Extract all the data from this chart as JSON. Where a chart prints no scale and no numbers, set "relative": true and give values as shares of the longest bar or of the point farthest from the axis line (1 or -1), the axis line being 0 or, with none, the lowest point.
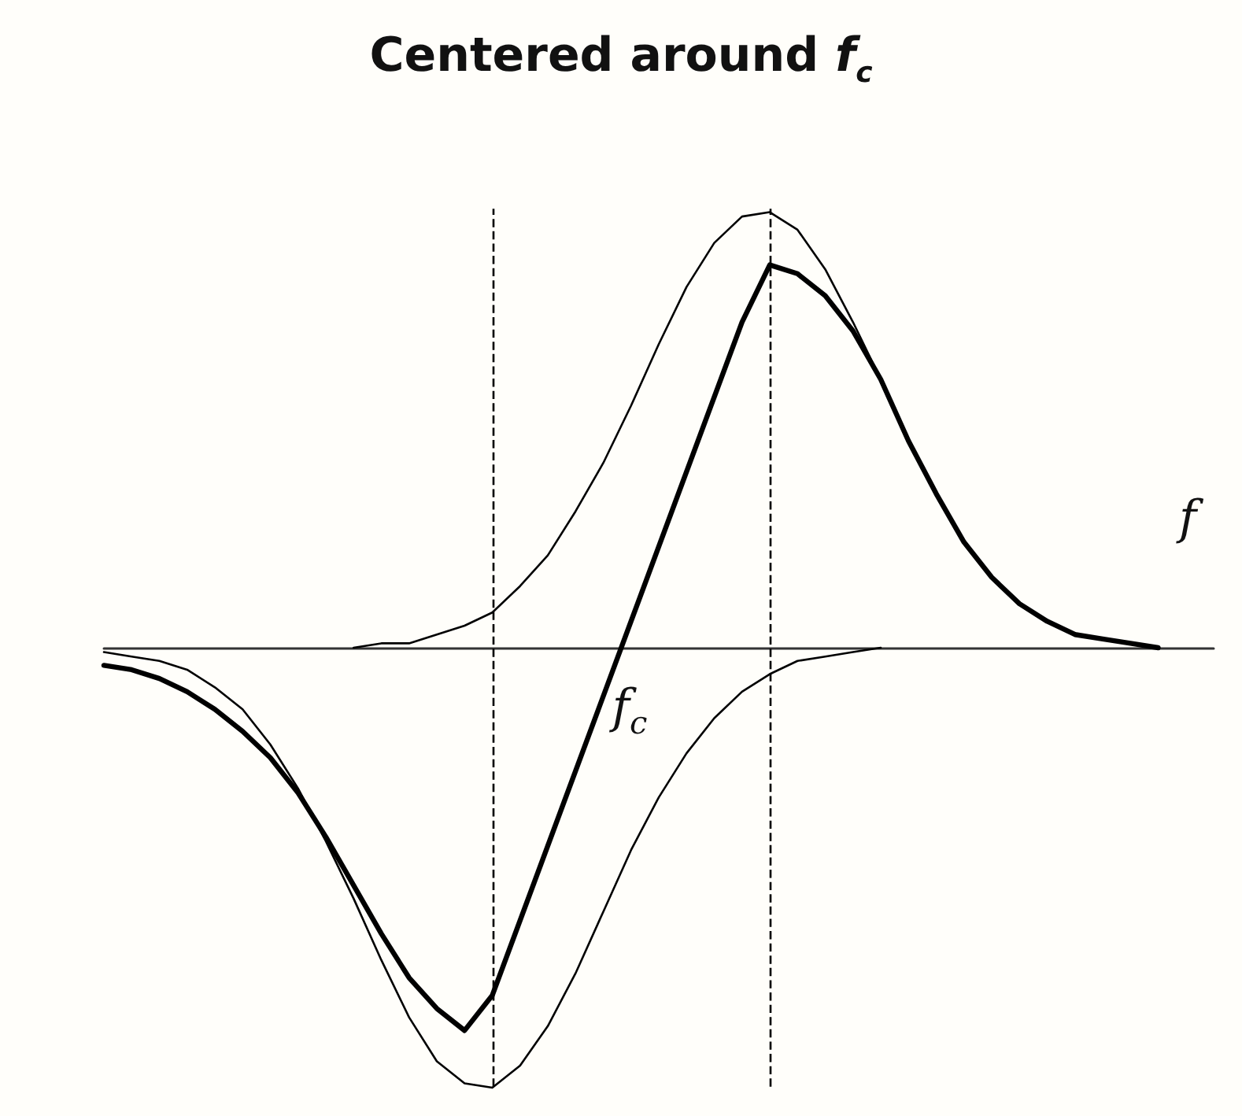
{
  "chart_data": {
    "type": "line",
    "title": "Centered around f$_{c}$",
    "relative": true,
    "marker": "none",
    "categories": [
      null,
      null,
      null,
      null,
      null,
      null,
      null,
      null,
      null,
      null,
      null,
      null,
      null,
      null,
      null,
      null,
      null,
      null,
      null,
      null,
      null,
      null,
      null,
      null,
      null,
      null,
      null,
      null,
      null,
      null,
      null,
      null,
      null,
      null,
      null,
      null,
      null,
      null,
      null,
      null,
      null
    ],
    "series": [
      {
        "color": "#000000",
        "values": [
          null,
          null,
          null,
          null,
          null,
          null,
          null,
          null,
          null,
          0.0,
          0.01,
          0.01,
          0.03,
          0.05,
          0.08,
          0.14,
          0.21,
          0.31,
          0.42,
          0.55,
          0.69,
          0.82,
          0.92,
          0.98,
          0.99,
          0.95,
          0.86,
          0.74,
          0.61,
          0.47,
          0.35,
          0.24,
          0.16,
          0.1,
          0.06,
          0.03,
          0.02,
          0.01,
          0.0,
          null,
          null
        ]
      },
      {
        "color": "#000000",
        "values": [
          -0.01,
          -0.02,
          -0.03,
          -0.05,
          -0.09,
          -0.14,
          -0.22,
          -0.32,
          -0.44,
          -0.57,
          -0.71,
          -0.84,
          -0.94,
          -0.99,
          -1.0,
          -0.95,
          -0.86,
          -0.74,
          -0.6,
          -0.46,
          -0.34,
          -0.24,
          -0.16,
          -0.1,
          -0.06,
          -0.03,
          -0.02,
          -0.01,
          0.0,
          null,
          null,
          null,
          null,
          null,
          null,
          null,
          null,
          null,
          null,
          null,
          null
        ]
      },
      {
        "color": "#000000",
        "values": [
          -0.04,
          -0.05,
          -0.07,
          -0.1,
          -0.14,
          -0.19,
          -0.25,
          -0.33,
          -0.43,
          -0.54,
          -0.65,
          -0.75,
          -0.82,
          -0.87,
          -0.79,
          -0.62,
          -0.45,
          -0.28,
          -0.11,
          0.06,
          0.23,
          0.4,
          0.57,
          0.74,
          0.87,
          0.85,
          0.8,
          0.72,
          0.61,
          0.47,
          0.35,
          0.24,
          0.16,
          0.1,
          0.06,
          0.03,
          0.02,
          0.01,
          0.0,
          null,
          null
        ]
      }
    ],
    "annotations": [
      "f",
      "f$_{c}$"
    ]
  }
}
